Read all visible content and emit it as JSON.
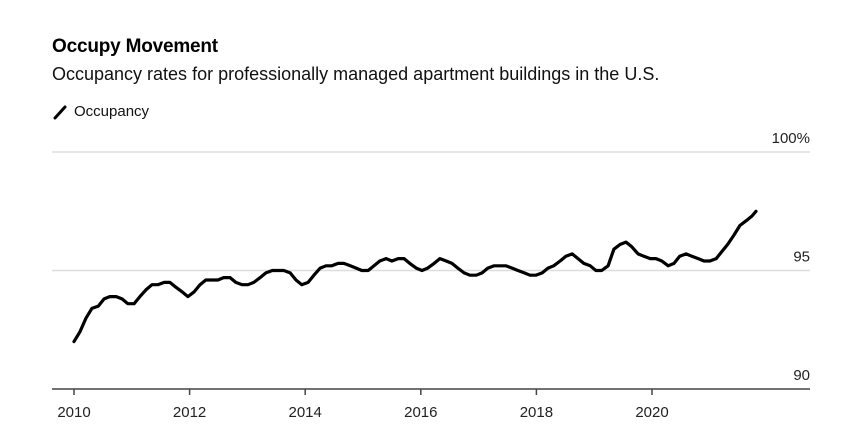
{
  "header": {
    "title": "Occupy Movement",
    "subtitle": "Occupancy rates for professionally managed apartment buildings in the U.S."
  },
  "legend": [
    {
      "label": "Occupancy",
      "icon": "line-swatch-icon",
      "color": "#000000"
    }
  ],
  "chart_data": {
    "type": "line",
    "title": "Occupy Movement",
    "subtitle": "Occupancy rates for professionally managed apartment buildings in the U.S.",
    "xlabel": "",
    "ylabel": "",
    "xlim": [
      2010,
      2022.5
    ],
    "ylim": [
      90,
      100
    ],
    "x_ticks": [
      2010,
      2012,
      2014,
      2016,
      2018,
      2020
    ],
    "x_tick_labels": [
      "2010",
      "2012",
      "2014",
      "2016",
      "2018",
      "2020"
    ],
    "y_ticks": [
      90,
      95,
      100
    ],
    "y_tick_labels": [
      "90",
      "95",
      "100%"
    ],
    "y_axis_side": "right",
    "grid": true,
    "legend_position": "top-left",
    "series": [
      {
        "name": "Occupancy",
        "color": "#000000",
        "x": [
          2010.0,
          2010.1,
          2010.21,
          2010.31,
          2010.42,
          2010.52,
          2010.62,
          2010.73,
          2010.83,
          2010.93,
          2011.04,
          2011.14,
          2011.25,
          2011.35,
          2011.45,
          2011.56,
          2011.66,
          2011.76,
          2011.87,
          2011.97,
          2012.08,
          2012.18,
          2012.28,
          2012.39,
          2012.49,
          2012.59,
          2012.7,
          2012.8,
          2012.91,
          2013.01,
          2013.11,
          2013.22,
          2013.32,
          2013.43,
          2013.53,
          2013.63,
          2013.74,
          2013.84,
          2013.94,
          2014.05,
          2014.15,
          2014.26,
          2014.36,
          2014.46,
          2014.57,
          2014.67,
          2014.78,
          2014.88,
          2014.98,
          2015.09,
          2015.19,
          2015.29,
          2015.4,
          2015.5,
          2015.61,
          2015.71,
          2015.81,
          2015.92,
          2016.02,
          2016.12,
          2016.23,
          2016.33,
          2016.44,
          2016.54,
          2016.64,
          2016.75,
          2016.85,
          2016.96,
          2017.06,
          2017.16,
          2017.27,
          2017.37,
          2017.47,
          2017.58,
          2017.68,
          2017.79,
          2017.89,
          2017.99,
          2018.1,
          2018.2,
          2018.3,
          2018.41,
          2018.51,
          2018.62,
          2018.72,
          2018.82,
          2018.93,
          2019.03,
          2019.13,
          2019.24,
          2019.34,
          2019.45,
          2019.55,
          2019.65,
          2019.76,
          2019.86,
          2019.97,
          2020.07,
          2020.17,
          2020.28,
          2020.38,
          2020.48,
          2020.59,
          2020.69,
          2020.8,
          2020.9,
          2021.0,
          2021.11,
          2021.21,
          2021.31,
          2021.42,
          2021.52,
          2021.63,
          2021.73,
          2021.8
        ],
        "values": [
          92.0,
          92.4,
          93.0,
          93.4,
          93.5,
          93.8,
          93.9,
          93.9,
          93.8,
          93.6,
          93.6,
          93.9,
          94.2,
          94.4,
          94.4,
          94.5,
          94.5,
          94.3,
          94.1,
          93.9,
          94.1,
          94.4,
          94.6,
          94.6,
          94.6,
          94.7,
          94.7,
          94.5,
          94.4,
          94.4,
          94.5,
          94.7,
          94.9,
          95.0,
          95.0,
          95.0,
          94.9,
          94.6,
          94.4,
          94.5,
          94.8,
          95.1,
          95.2,
          95.2,
          95.3,
          95.3,
          95.2,
          95.1,
          95.0,
          95.0,
          95.2,
          95.4,
          95.5,
          95.4,
          95.5,
          95.5,
          95.3,
          95.1,
          95.0,
          95.1,
          95.3,
          95.5,
          95.4,
          95.3,
          95.1,
          94.9,
          94.8,
          94.8,
          94.9,
          95.1,
          95.2,
          95.2,
          95.2,
          95.1,
          95.0,
          94.9,
          94.8,
          94.8,
          94.9,
          95.1,
          95.2,
          95.4,
          95.6,
          95.7,
          95.5,
          95.3,
          95.2,
          95.0,
          95.0,
          95.2,
          95.9,
          96.1,
          96.2,
          96.0,
          95.7,
          95.6,
          95.5,
          95.5,
          95.4,
          95.2,
          95.3,
          95.6,
          95.7,
          95.6,
          95.5,
          95.4,
          95.4,
          95.5,
          95.8,
          96.1,
          96.5,
          96.9,
          97.1,
          97.3,
          97.5
        ]
      }
    ]
  }
}
